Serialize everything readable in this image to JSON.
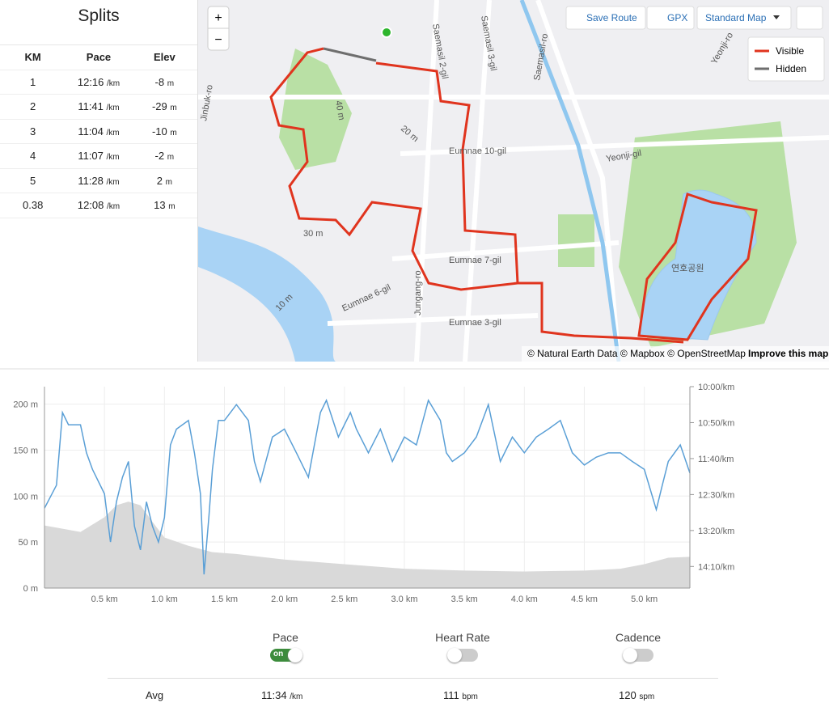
{
  "splits": {
    "title": "Splits",
    "columns": [
      "KM",
      "Pace",
      "Elev"
    ],
    "units": {
      "pace": "/km",
      "elev": "m"
    },
    "rows": [
      {
        "km": 1,
        "pace": "12:16",
        "elev": -8
      },
      {
        "km": 2,
        "pace": "11:41",
        "elev": -29
      },
      {
        "km": 3,
        "pace": "11:04",
        "elev": -10
      },
      {
        "km": 4,
        "pace": "11:07",
        "elev": -2
      },
      {
        "km": 5,
        "pace": "11:28",
        "elev": 2
      },
      {
        "km": 0.38,
        "pace": "12:08",
        "elev": 13
      }
    ]
  },
  "map": {
    "zoom_in": "+",
    "zoom_out": "−",
    "buttons": [
      "Save Route",
      "GPX",
      "Standard Map"
    ],
    "legend": [
      "Visible",
      "Hidden"
    ],
    "attribution": "© Natural Earth Data © Mapbox © OpenStreetMap",
    "improve": "Improve this map",
    "labels": [
      "Eumnae 10-gil",
      "Eumnae 7-gil",
      "Eumnae 6-gil",
      "Eumnae 3-gil",
      "Saemasil 2-gil",
      "Saemasil 3-gil",
      "Saemasil-ro",
      "Yeonji-gil",
      "Yeonji-ro",
      "Jungang-ro",
      "Jinbuk-ro",
      "연호공원",
      "40 m",
      "30 m",
      "20 m",
      "10 m"
    ]
  },
  "chart_data": {
    "type": "line",
    "xlim": [
      0,
      5.38
    ],
    "xticks": [
      {
        "value": 0.5,
        "label": "0.5 km"
      },
      {
        "value": 1,
        "label": "1.0 km"
      },
      {
        "value": 1.5,
        "label": "1.5 km"
      },
      {
        "value": 2,
        "label": "2.0 km"
      },
      {
        "value": 2.5,
        "label": "2.5 km"
      },
      {
        "value": 3,
        "label": "3.0 km"
      },
      {
        "value": 3.5,
        "label": "3.5 km"
      },
      {
        "value": 4,
        "label": "4.0 km"
      },
      {
        "value": 4.5,
        "label": "4.5 km"
      },
      {
        "value": 5,
        "label": "5.0 km"
      }
    ],
    "ylim": [
      0,
      219
    ],
    "yticks": [
      {
        "value": 0,
        "label": "0 m"
      },
      {
        "value": 50,
        "label": "50 m"
      },
      {
        "value": 100,
        "label": "100 m"
      },
      {
        "value": 150,
        "label": "150 m"
      },
      {
        "value": 200,
        "label": "200 m"
      }
    ],
    "y2lim": [
      880,
      600
    ],
    "y2ticks": [
      {
        "value": 600,
        "label": "10:00/km"
      },
      {
        "value": 650,
        "label": "10:50/km"
      },
      {
        "value": 700,
        "label": "11:40/km"
      },
      {
        "value": 750,
        "label": "12:30/km"
      },
      {
        "value": 800,
        "label": "13:20/km"
      },
      {
        "value": 850,
        "label": "14:10/km"
      }
    ],
    "grid": true,
    "series": [
      {
        "name": "Pace",
        "color": "#5a9fd6",
        "axis": "y2",
        "x": [
          0,
          0.1,
          0.15,
          0.2,
          0.3,
          0.35,
          0.4,
          0.5,
          0.55,
          0.6,
          0.65,
          0.7,
          0.75,
          0.8,
          0.85,
          0.9,
          0.95,
          1,
          1.05,
          1.1,
          1.2,
          1.25,
          1.3,
          1.33,
          1.37,
          1.4,
          1.45,
          1.5,
          1.6,
          1.7,
          1.75,
          1.8,
          1.9,
          2,
          2.1,
          2.2,
          2.3,
          2.35,
          2.45,
          2.55,
          2.6,
          2.7,
          2.8,
          2.9,
          3,
          3.1,
          3.2,
          3.3,
          3.35,
          3.4,
          3.5,
          3.6,
          3.7,
          3.8,
          3.9,
          4,
          4.1,
          4.2,
          4.3,
          4.4,
          4.5,
          4.6,
          4.7,
          4.8,
          4.9,
          5,
          5.1,
          5.15,
          5.2,
          5.3,
          5.38
        ],
        "values": [
          769,
          737,
          636,
          653,
          653,
          692,
          715,
          749,
          816,
          760,
          726,
          704,
          794,
          827,
          760,
          794,
          816,
          782,
          681,
          659,
          647,
          692,
          749,
          861,
          782,
          715,
          647,
          647,
          625,
          647,
          704,
          732,
          670,
          659,
          692,
          726,
          636,
          619,
          670,
          636,
          659,
          692,
          659,
          704,
          670,
          681,
          619,
          647,
          692,
          704,
          692,
          670,
          625,
          704,
          670,
          692,
          670,
          659,
          647,
          692,
          709,
          698,
          692,
          692,
          704,
          715,
          771,
          737,
          704,
          681,
          720
        ]
      },
      {
        "name": "Elevation",
        "color": "#d9d9d9",
        "axis": "y",
        "x": [
          0,
          0.3,
          0.5,
          0.6,
          0.7,
          0.8,
          0.9,
          1,
          1.2,
          1.4,
          1.6,
          1.8,
          2,
          2.5,
          3,
          3.5,
          4,
          4.5,
          4.8,
          5,
          5.2,
          5.38
        ],
        "values": [
          68,
          61,
          77,
          90,
          94,
          90,
          72,
          55,
          46,
          39,
          37,
          34,
          31,
          26,
          21,
          19,
          18,
          19,
          21,
          26,
          33,
          34
        ]
      }
    ]
  },
  "controls": {
    "toggles": [
      {
        "label": "Pace",
        "on": true,
        "state": "on"
      },
      {
        "label": "Heart Rate",
        "on": false
      },
      {
        "label": "Cadence",
        "on": false
      }
    ],
    "avg": {
      "label": "Avg",
      "pace": "11:34",
      "pace_unit": "/km",
      "hr": 111,
      "hr_unit": "bpm",
      "cadence": 120,
      "cadence_unit": "spm"
    }
  }
}
